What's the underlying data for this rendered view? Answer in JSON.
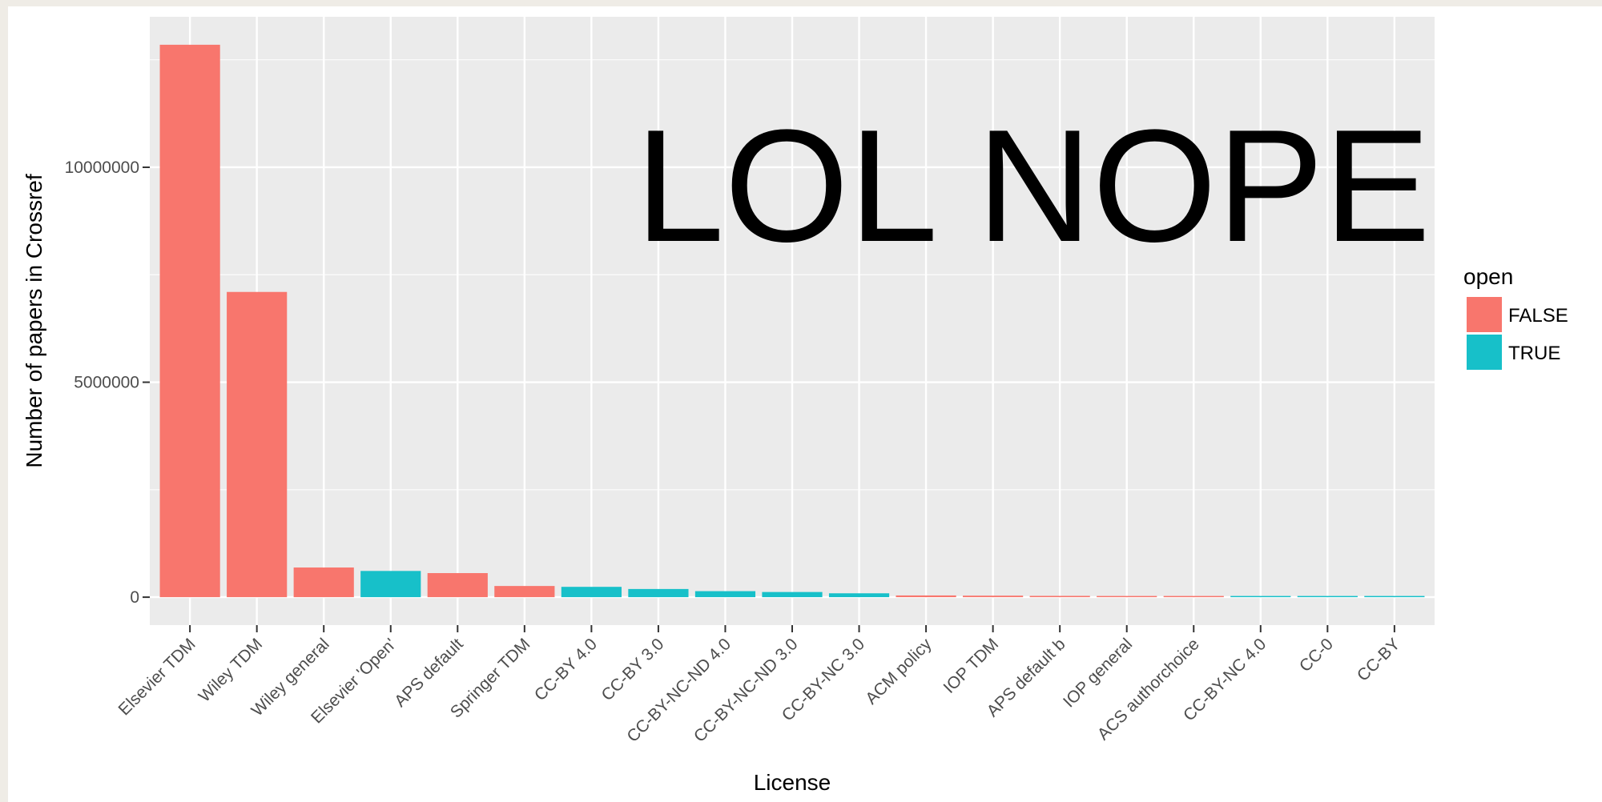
{
  "chart_data": {
    "type": "bar",
    "xlabel": "License",
    "ylabel": "Number of papers in Crossref",
    "categories": [
      "Elsevier TDM",
      "Wiley TDM",
      "Wiley general",
      "Elsevier 'Open'",
      "APS default",
      "Springer TDM",
      "CC-BY 4.0",
      "CC-BY 3.0",
      "CC-BY-NC-ND 4.0",
      "CC-BY-NC-ND 3.0",
      "CC-BY-NC 3.0",
      "ACM policy",
      "IOP TDM",
      "APS default b",
      "IOP general",
      "ACS authorchoice",
      "CC-BY-NC 4.0",
      "CC-0",
      "CC-BY"
    ],
    "values": [
      12850000,
      7100000,
      690000,
      610000,
      560000,
      260000,
      240000,
      190000,
      140000,
      120000,
      90000,
      40000,
      35000,
      30000,
      20000,
      18000,
      15000,
      12000,
      8000
    ],
    "open": [
      false,
      false,
      false,
      true,
      false,
      false,
      true,
      true,
      true,
      true,
      true,
      false,
      false,
      false,
      false,
      false,
      true,
      true,
      true
    ],
    "ylim": [
      -650000,
      13500000
    ],
    "yticks": [
      0,
      5000000,
      10000000
    ],
    "ytick_labels": [
      "0",
      "5000000",
      "10000000"
    ],
    "grid": true,
    "legend": {
      "title": "open",
      "placement": "right",
      "entries": [
        {
          "label": "FALSE",
          "color": "#F8766D"
        },
        {
          "label": "TRUE",
          "color": "#00BFC4"
        }
      ]
    },
    "annotation": "LOL NOPE"
  },
  "colors": {
    "panel": "#EBEBEB",
    "grid_major": "#FFFFFF",
    "false": "#F8766D",
    "true": "#17C0C9"
  }
}
